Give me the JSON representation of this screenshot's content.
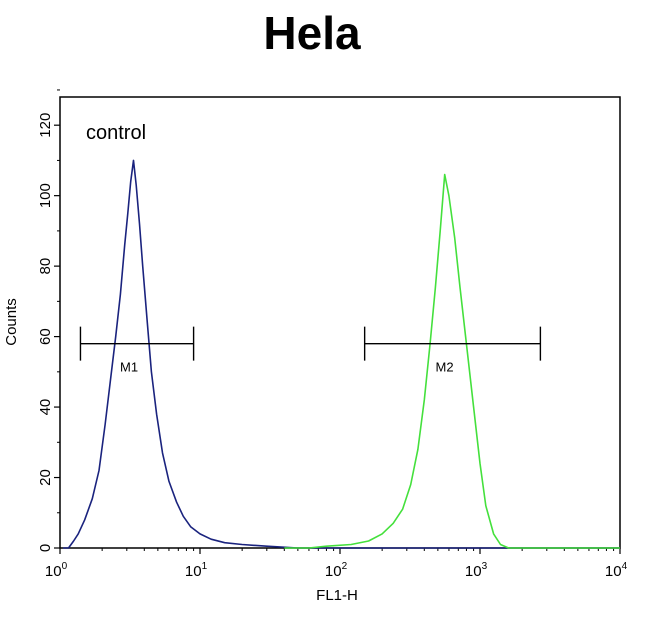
{
  "chart_data": {
    "type": "line",
    "title": "Hela",
    "xlabel": "FL1-H",
    "ylabel": "Counts",
    "x_scale": "log",
    "xlim": [
      1,
      10000
    ],
    "ylim": [
      0,
      128
    ],
    "x_ticks": [
      {
        "base": "10",
        "exp": "0"
      },
      {
        "base": "10",
        "exp": "1"
      },
      {
        "base": "10",
        "exp": "2"
      },
      {
        "base": "10",
        "exp": "3"
      },
      {
        "base": "10",
        "exp": "4"
      }
    ],
    "x_tick_values": [
      1,
      10,
      100,
      1000,
      10000
    ],
    "y_ticks": [
      0,
      20,
      40,
      60,
      80,
      100,
      120
    ],
    "annotation": "control",
    "series": [
      {
        "color": "#1a237e",
        "points": [
          [
            1.05,
            0
          ],
          [
            1.15,
            0
          ],
          [
            1.25,
            2
          ],
          [
            1.35,
            4
          ],
          [
            1.5,
            8
          ],
          [
            1.7,
            14
          ],
          [
            1.9,
            22
          ],
          [
            2.1,
            35
          ],
          [
            2.3,
            48
          ],
          [
            2.5,
            60
          ],
          [
            2.7,
            72
          ],
          [
            2.9,
            86
          ],
          [
            3.05,
            95
          ],
          [
            3.2,
            104
          ],
          [
            3.35,
            110
          ],
          [
            3.5,
            103
          ],
          [
            3.7,
            92
          ],
          [
            3.9,
            80
          ],
          [
            4.2,
            64
          ],
          [
            4.5,
            50
          ],
          [
            4.9,
            38
          ],
          [
            5.4,
            27
          ],
          [
            6.0,
            19
          ],
          [
            6.8,
            13
          ],
          [
            7.6,
            9
          ],
          [
            8.6,
            6
          ],
          [
            10,
            4
          ],
          [
            12,
            2.5
          ],
          [
            15,
            1.5
          ],
          [
            20,
            1
          ],
          [
            30,
            0.5
          ],
          [
            50,
            0
          ],
          [
            100,
            0
          ],
          [
            1000,
            0
          ],
          [
            10000,
            0
          ]
        ]
      },
      {
        "color": "#44e03c",
        "points": [
          [
            40,
            0
          ],
          [
            60,
            0
          ],
          [
            80,
            0.5
          ],
          [
            120,
            1
          ],
          [
            160,
            2
          ],
          [
            200,
            4
          ],
          [
            240,
            7
          ],
          [
            280,
            11
          ],
          [
            320,
            18
          ],
          [
            360,
            28
          ],
          [
            400,
            42
          ],
          [
            440,
            58
          ],
          [
            480,
            74
          ],
          [
            520,
            90
          ],
          [
            560,
            106
          ],
          [
            600,
            100
          ],
          [
            660,
            88
          ],
          [
            720,
            74
          ],
          [
            800,
            58
          ],
          [
            900,
            40
          ],
          [
            1000,
            24
          ],
          [
            1100,
            12
          ],
          [
            1250,
            4
          ],
          [
            1400,
            1
          ],
          [
            1600,
            0
          ],
          [
            2000,
            0
          ],
          [
            10000,
            0
          ]
        ]
      }
    ],
    "markers": [
      {
        "name": "M1",
        "x_start": 1.4,
        "x_end": 9.0,
        "y": 58
      },
      {
        "name": "M2",
        "x_start": 150,
        "x_end": 2700,
        "y": 58
      }
    ]
  }
}
